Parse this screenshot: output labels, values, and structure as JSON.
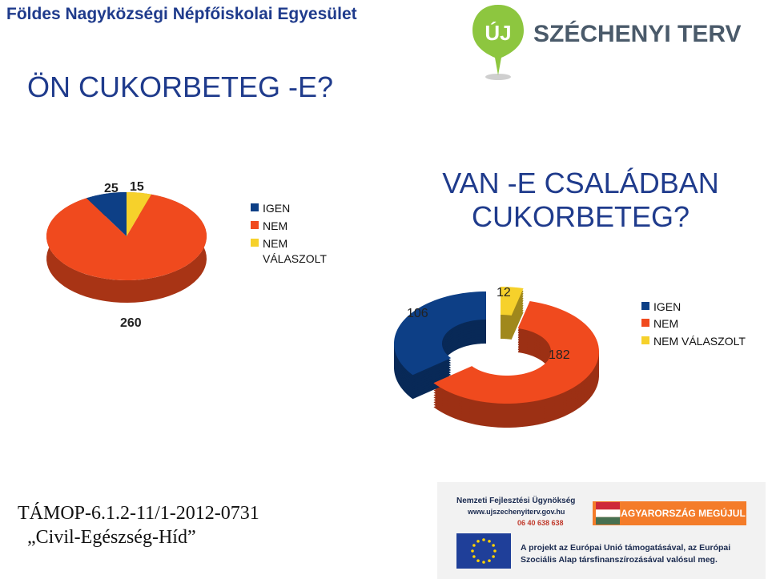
{
  "header": {
    "org": "Földes Nagyközségi Népfőiskolai Egyesület",
    "question1": "ÖN CUKORBETEG -E?",
    "question2": "VAN -E CSALÁDBAN CUKORBETEG?",
    "logo_badge": "ÚJ",
    "logo_text": "SZÉCHENYI TERV"
  },
  "chart_data": [
    {
      "type": "pie",
      "title": "ÖN CUKORBETEG -E?",
      "categories": [
        "IGEN",
        "NEM",
        "NEM VÁLASZOLT"
      ],
      "values": [
        25,
        260,
        15
      ],
      "labels": [
        "25",
        "260",
        "15"
      ],
      "colors": [
        "#0d3f86",
        "#f04a1e",
        "#f6d12b"
      ],
      "legend_position": "right"
    },
    {
      "type": "pie",
      "title": "VAN -E CSALÁDBAN CUKORBETEG?",
      "categories": [
        "IGEN",
        "NEM",
        "NEM VÁLASZOLT"
      ],
      "values": [
        106,
        182,
        12
      ],
      "labels": [
        "106",
        "182",
        "12"
      ],
      "colors": [
        "#0d3f86",
        "#f04a1e",
        "#f6d12b"
      ],
      "legend_position": "right"
    }
  ],
  "legend": {
    "igen": "IGEN",
    "nem": "NEM",
    "nem_valaszolt_1": "NEM",
    "nem_valaszolt_2": "VÁLASZOLT",
    "nem_valaszolt": "NEM VÁLASZOLT"
  },
  "project": {
    "code": "TÁMOP-6.1.2-11/1-2012-0731",
    "name": "„Civil-Egészség-Híd”"
  },
  "footer": {
    "agency": "Nemzeti Fejlesztési Ügynökség",
    "url": "www.ujszechenyiterv.gov.hu",
    "phone": "06 40 638 638",
    "campaign": "MAGYARORSZÁG MEGÚJUL",
    "funding_1": "A projekt az Európai Unió támogatásával, az Európai",
    "funding_2": "Szociális Alap társfinanszírozásával valósul meg."
  }
}
